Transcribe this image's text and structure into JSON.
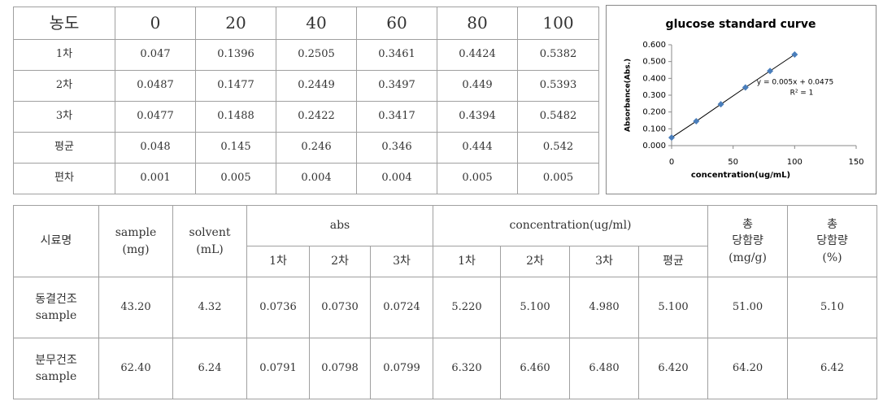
{
  "concentration_table": {
    "header": [
      "농도",
      "0",
      "20",
      "40",
      "60",
      "80",
      "100"
    ],
    "rows": [
      [
        "1차",
        "0.047",
        "0.1396",
        "0.2505",
        "0.3461",
        "0.4424",
        "0.5382"
      ],
      [
        "2차",
        "0.0487",
        "0.1477",
        "0.2449",
        "0.3497",
        "0.449",
        "0.5393"
      ],
      [
        "3차",
        "0.0477",
        "0.1488",
        "0.2422",
        "0.3417",
        "0.4394",
        "0.5482"
      ],
      [
        "평균",
        "0.048",
        "0.145",
        "0.246",
        "0.346",
        "0.444",
        "0.542"
      ],
      [
        "편차",
        "0.001",
        "0.005",
        "0.004",
        "0.004",
        "0.005",
        "0.005"
      ]
    ]
  },
  "chart_data": {
    "type": "scatter",
    "title": "glucose standard curve",
    "x_label": "concentration(ug/mL)",
    "y_label": "Absorbance(Abs.)",
    "x": [
      0,
      20,
      40,
      60,
      80,
      100
    ],
    "values": [
      0.048,
      0.145,
      0.246,
      0.346,
      0.444,
      0.542
    ],
    "color": "#4a7ebb",
    "line_color": "#000000",
    "xlim": [
      0,
      150
    ],
    "xticks": [
      0,
      50,
      100,
      150
    ],
    "ylim": [
      0,
      0.6
    ],
    "yticks": [
      {
        "value": 0,
        "label": "0.000"
      },
      {
        "value": 0.1,
        "label": "0.100"
      },
      {
        "value": 0.2,
        "label": "0.200"
      },
      {
        "value": 0.3,
        "label": "0.300"
      },
      {
        "value": 0.4,
        "label": "0.400"
      },
      {
        "value": 0.5,
        "label": "0.500"
      },
      {
        "value": 0.6,
        "label": "0.600"
      }
    ],
    "grid": false,
    "annotations": [
      "y = 0.005x + 0.0475",
      "R² = 1"
    ]
  },
  "sample_table": {
    "header": [
      {
        "label": [
          "시료명"
        ]
      },
      {
        "label": [
          "sample",
          "(mg)"
        ]
      },
      {
        "label": [
          "solvent",
          "(mL)"
        ]
      },
      {
        "label": [
          "abs"
        ],
        "sub": [
          "1차",
          "2차",
          "3차"
        ]
      },
      {
        "label": [
          "concentration(ug/ml)"
        ],
        "sub": [
          "1차",
          "2차",
          "3차",
          "평균"
        ]
      },
      {
        "label": [
          "총",
          "당함량",
          "(mg/g)"
        ]
      },
      {
        "label": [
          "총",
          "당함량",
          "(%)"
        ]
      }
    ],
    "rows": [
      {
        "name": [
          "동결건조",
          "sample"
        ],
        "values": [
          "43.20",
          "4.32",
          "0.0736",
          "0.0730",
          "0.0724",
          "5.220",
          "5.100",
          "4.980",
          "5.100",
          "51.00",
          "5.10"
        ]
      },
      {
        "name": [
          "분무건조",
          "sample"
        ],
        "values": [
          "62.40",
          "6.24",
          "0.0791",
          "0.0798",
          "0.0799",
          "6.320",
          "6.460",
          "6.480",
          "6.420",
          "64.20",
          "6.42"
        ]
      }
    ]
  }
}
